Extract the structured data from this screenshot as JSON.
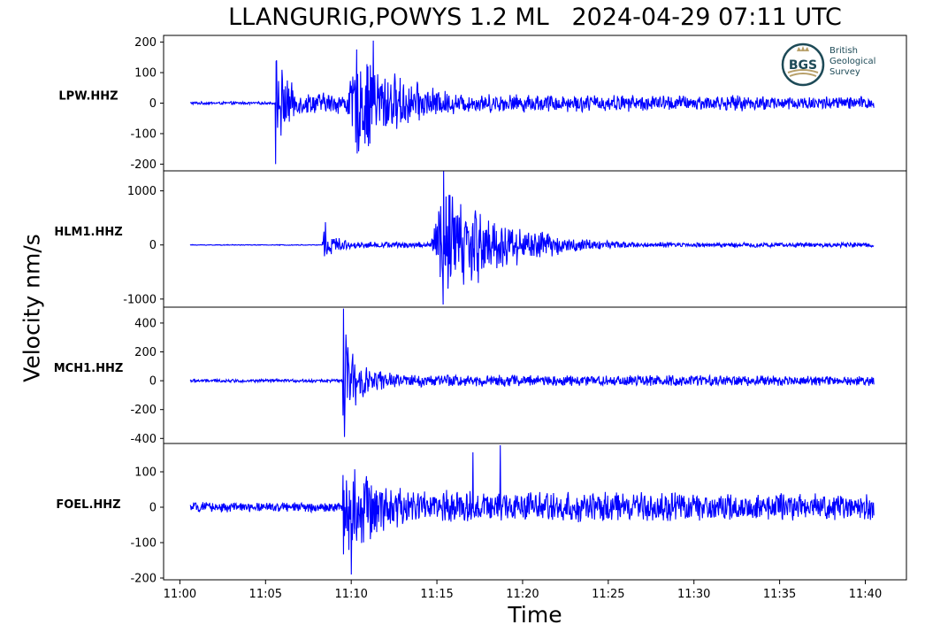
{
  "title": "LLANGURIG,POWYS 1.2 ML   2024-04-29 07:11 UTC",
  "ylabel": "Velocity nm/s",
  "xlabel": "Time",
  "logo": {
    "lines": [
      "British",
      "Geological",
      "Survey"
    ],
    "initials": "BGS",
    "color": "#1d4a57",
    "accent": "#b8a06a"
  },
  "colors": {
    "trace": "#0000ff",
    "axes": "#000000"
  },
  "chart_data": [
    {
      "type": "line",
      "station": "LPW.HHZ",
      "yticks": [
        -200,
        -100,
        0,
        100,
        200
      ],
      "ylim": [
        -222,
        222
      ],
      "xlim_minutes": [
        -0.95,
        42.4
      ],
      "onset_minutes": 5.6,
      "s_minutes": 10.3,
      "pre_noise": 5,
      "p_amp": 190,
      "s_amp": 200,
      "coda_amp": 35,
      "peaks": [
        {
          "t": 5.6,
          "v": -200
        },
        {
          "t": 5.65,
          "v": 140
        },
        {
          "t": 11.3,
          "v": 205
        }
      ]
    },
    {
      "type": "line",
      "station": "HLM1.HHZ",
      "yticks": [
        -1000,
        0,
        1000
      ],
      "ylim": [
        -1150,
        1370
      ],
      "xlim_minutes": [
        -0.95,
        42.4
      ],
      "onset_minutes": 8.3,
      "s_minutes": 15.3,
      "pre_noise": 8,
      "p_amp": 420,
      "s_amp": 1400,
      "coda_amp": 60,
      "peaks": [
        {
          "t": 15.4,
          "v": 1380
        },
        {
          "t": 15.35,
          "v": -1100
        },
        {
          "t": 8.5,
          "v": 420
        }
      ]
    },
    {
      "type": "line",
      "station": "MCH1.HHZ",
      "yticks": [
        -400,
        -200,
        0,
        200,
        400
      ],
      "ylim": [
        -435,
        510
      ],
      "xlim_minutes": [
        -0.95,
        42.4
      ],
      "onset_minutes": 9.5,
      "s_minutes": 10.0,
      "pre_noise": 12,
      "p_amp": 500,
      "s_amp": 120,
      "coda_amp": 40,
      "peaks": [
        {
          "t": 9.55,
          "v": 500
        },
        {
          "t": 9.6,
          "v": -390
        }
      ]
    },
    {
      "type": "line",
      "station": "FOEL.HHZ",
      "yticks": [
        -200,
        -100,
        0,
        100
      ],
      "ylim": [
        -205,
        180
      ],
      "xlim_minutes": [
        -0.95,
        42.4
      ],
      "onset_minutes": 9.5,
      "s_minutes": 9.6,
      "pre_noise": 15,
      "p_amp": 150,
      "s_amp": 150,
      "coda_amp": 40,
      "peaks": [
        {
          "t": 18.7,
          "v": 175
        },
        {
          "t": 10.0,
          "v": -190
        },
        {
          "t": 17.1,
          "v": 155
        }
      ]
    }
  ],
  "xticks": [
    "11:00",
    "11:05",
    "11:10",
    "11:15",
    "11:20",
    "11:25",
    "11:30",
    "11:35",
    "11:40"
  ],
  "xtick_minutes": [
    0,
    5,
    10,
    15,
    20,
    25,
    30,
    35,
    40
  ],
  "trace_span_minutes": [
    0.6,
    40.5
  ]
}
